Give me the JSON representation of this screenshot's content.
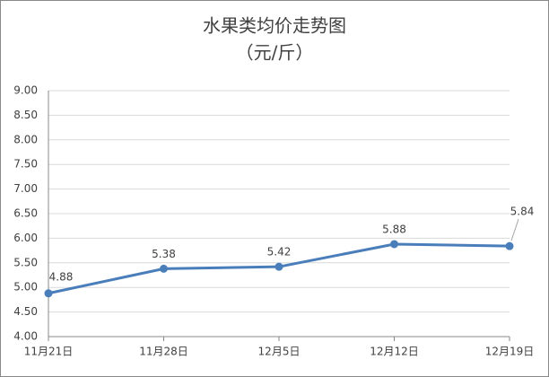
{
  "chart_data": {
    "type": "line",
    "title": "水果类均价走势图",
    "subtitle": "（元/斤）",
    "categories": [
      "11月21日",
      "11月28日",
      "12月5日",
      "12月12日",
      "12月19日"
    ],
    "series": [
      {
        "color": "#4a7ebb",
        "values": [
          4.88,
          5.38,
          5.42,
          5.88,
          5.84
        ]
      }
    ],
    "ylim": [
      4,
      9
    ],
    "yticks": [
      {
        "value": 4,
        "label": "4.00"
      },
      {
        "value": 4.5,
        "label": "4.50"
      },
      {
        "value": 5,
        "label": "5.00"
      },
      {
        "value": 5.5,
        "label": "5.50"
      },
      {
        "value": 6,
        "label": "6.00"
      },
      {
        "value": 6.5,
        "label": "6.50"
      },
      {
        "value": 7,
        "label": "7.00"
      },
      {
        "value": 7.5,
        "label": "7.50"
      },
      {
        "value": 8,
        "label": "8.00"
      },
      {
        "value": 8.5,
        "label": "8.50"
      },
      {
        "value": 9,
        "label": "9.00"
      }
    ],
    "grid": true
  }
}
